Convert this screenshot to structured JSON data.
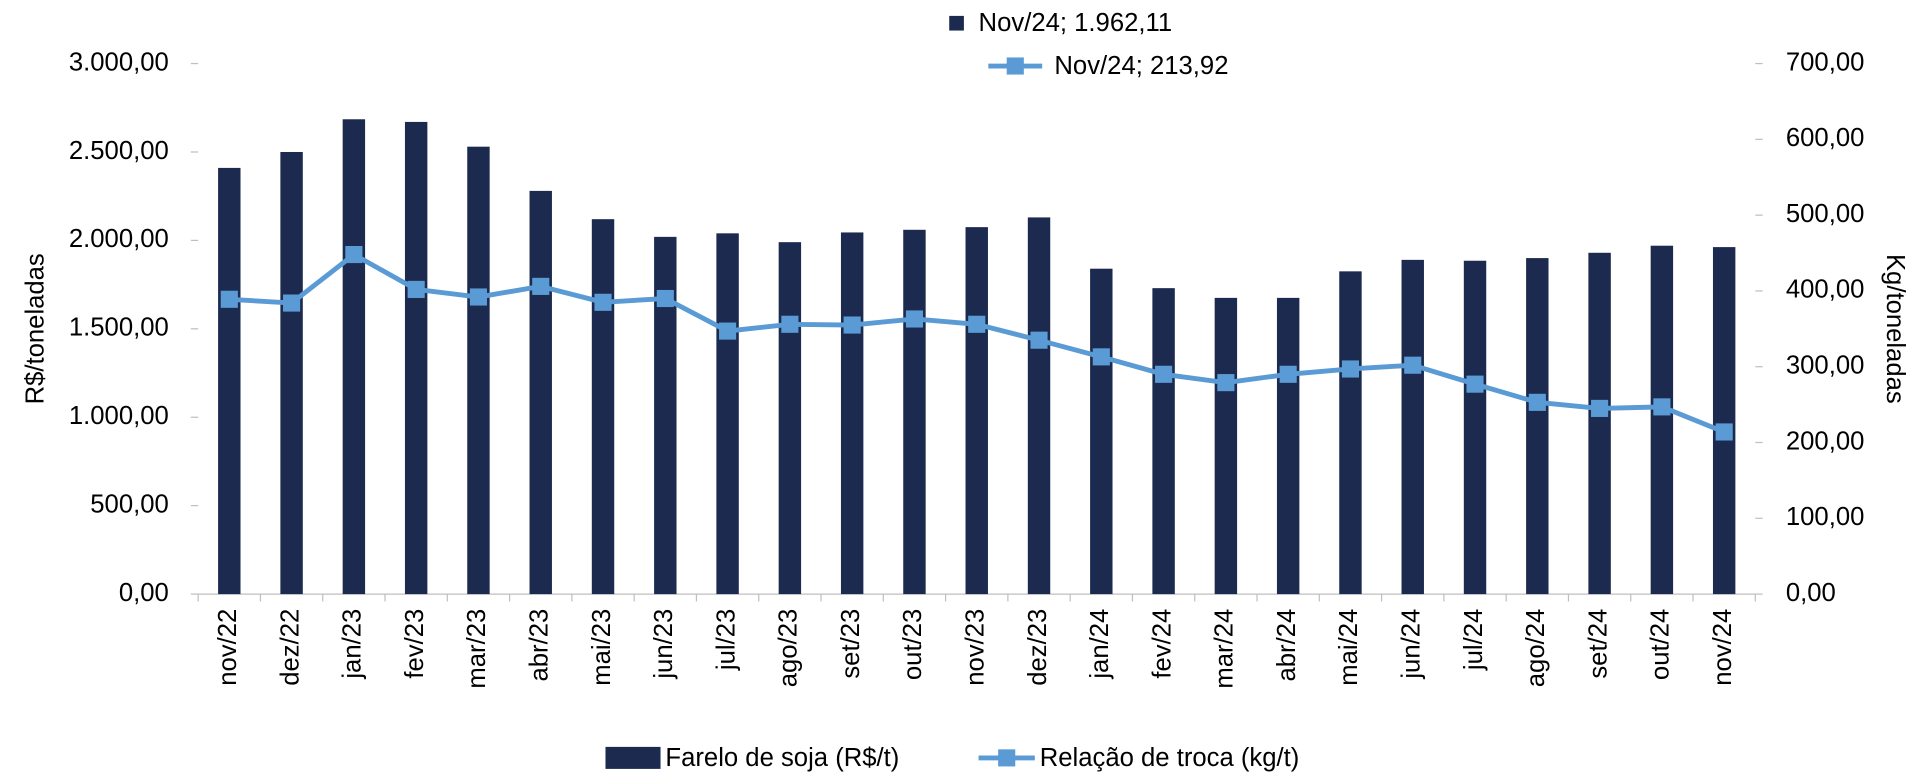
{
  "chart_data": {
    "type": "bar_line",
    "categories": [
      "nov/22",
      "dez/22",
      "jan/23",
      "fev/23",
      "mar/23",
      "abr/23",
      "mai/23",
      "jun/23",
      "jul/23",
      "ago/23",
      "set/23",
      "out/23",
      "nov/23",
      "dez/23",
      "jan/24",
      "fev/24",
      "mar/24",
      "abr/24",
      "mai/24",
      "jun/24",
      "jul/24",
      "ago/24",
      "set/24",
      "out/24",
      "nov/24"
    ],
    "series": [
      {
        "name": "Farelo de soja (R$/t)",
        "type": "bar",
        "color": "#1b2a4e",
        "axis": "y",
        "values": [
          2410,
          2500,
          2685,
          2670,
          2530,
          2280,
          2120,
          2020,
          2040,
          1990,
          2045,
          2060,
          2075,
          2130,
          1840,
          1730,
          1675,
          1675,
          1825,
          1890,
          1885,
          1900,
          1930,
          1970,
          1962.11
        ]
      },
      {
        "name": "Relação de troca (kg/t)",
        "type": "line",
        "color": "#5b9bd5",
        "axis": "y2",
        "values": [
          389,
          384,
          448,
          402,
          392,
          406,
          385,
          390,
          347,
          356,
          355,
          363,
          356,
          335,
          313,
          290,
          279,
          290,
          297,
          302,
          277,
          253,
          245,
          247,
          213.92
        ]
      }
    ],
    "ylabel": "R$/toneladas",
    "y2label": "Kg/toneladas",
    "ylim": [
      0,
      3000
    ],
    "yticks": [
      {
        "value": 0,
        "label": "0,00"
      },
      {
        "value": 500,
        "label": "500,00"
      },
      {
        "value": 1000,
        "label": "1.000,00"
      },
      {
        "value": 1500,
        "label": "1.500,00"
      },
      {
        "value": 2000,
        "label": "2.000,00"
      },
      {
        "value": 2500,
        "label": "2.500,00"
      },
      {
        "value": 3000,
        "label": "3.000,00"
      }
    ],
    "y2lim": [
      0,
      700
    ],
    "y2ticks": [
      {
        "value": 0,
        "label": "0,00"
      },
      {
        "value": 100,
        "label": "100,00"
      },
      {
        "value": 200,
        "label": "200,00"
      },
      {
        "value": 300,
        "label": "300,00"
      },
      {
        "value": 400,
        "label": "400,00"
      },
      {
        "value": 500,
        "label": "500,00"
      },
      {
        "value": 600,
        "label": "600,00"
      },
      {
        "value": 700,
        "label": "700,00"
      }
    ],
    "annotations": [
      "Nov/24; 1.962,11",
      "Nov/24; 213,92"
    ],
    "legend": "bottom",
    "grid": false
  }
}
